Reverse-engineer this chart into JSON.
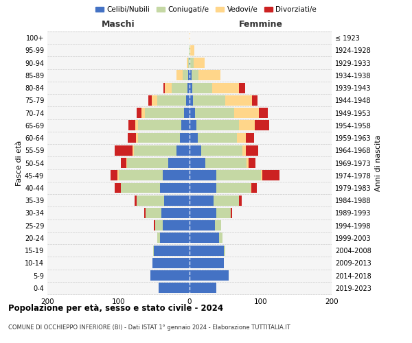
{
  "age_groups": [
    "0-4",
    "5-9",
    "10-14",
    "15-19",
    "20-24",
    "25-29",
    "30-34",
    "35-39",
    "40-44",
    "45-49",
    "50-54",
    "55-59",
    "60-64",
    "65-69",
    "70-74",
    "75-79",
    "80-84",
    "85-89",
    "90-94",
    "95-99",
    "100+"
  ],
  "birth_years": [
    "2019-2023",
    "2014-2018",
    "2009-2013",
    "2004-2008",
    "1999-2003",
    "1994-1998",
    "1989-1993",
    "1984-1988",
    "1979-1983",
    "1974-1978",
    "1969-1973",
    "1964-1968",
    "1959-1963",
    "1954-1958",
    "1949-1953",
    "1944-1948",
    "1939-1943",
    "1934-1938",
    "1929-1933",
    "1924-1928",
    "≤ 1923"
  ],
  "male": {
    "celibi": [
      43,
      55,
      52,
      50,
      42,
      38,
      40,
      36,
      42,
      38,
      30,
      18,
      14,
      12,
      8,
      5,
      3,
      2,
      0,
      0,
      0
    ],
    "coniugati": [
      0,
      0,
      0,
      1,
      3,
      10,
      22,
      38,
      55,
      62,
      58,
      60,
      58,
      60,
      55,
      40,
      22,
      8,
      2,
      1,
      0
    ],
    "vedovi": [
      0,
      0,
      0,
      0,
      0,
      0,
      0,
      0,
      0,
      1,
      1,
      2,
      3,
      4,
      5,
      8,
      10,
      8,
      2,
      0,
      0
    ],
    "divorziati": [
      0,
      0,
      0,
      0,
      0,
      2,
      2,
      3,
      8,
      10,
      8,
      25,
      12,
      10,
      6,
      5,
      2,
      0,
      0,
      0,
      0
    ]
  },
  "female": {
    "nubili": [
      38,
      55,
      48,
      48,
      42,
      36,
      38,
      34,
      38,
      38,
      22,
      16,
      12,
      10,
      8,
      5,
      4,
      3,
      1,
      0,
      0
    ],
    "coniugate": [
      0,
      0,
      0,
      2,
      4,
      8,
      20,
      36,
      48,
      62,
      58,
      58,
      55,
      60,
      55,
      45,
      28,
      10,
      5,
      1,
      0
    ],
    "vedove": [
      0,
      0,
      0,
      0,
      0,
      0,
      0,
      0,
      1,
      2,
      3,
      5,
      12,
      22,
      35,
      38,
      38,
      30,
      15,
      6,
      1
    ],
    "divorziate": [
      0,
      0,
      0,
      0,
      0,
      0,
      2,
      3,
      8,
      25,
      10,
      18,
      12,
      20,
      12,
      8,
      8,
      0,
      0,
      0,
      0
    ]
  },
  "colors": {
    "celibi": "#4472C4",
    "coniugati": "#C5D8A4",
    "vedovi": "#FFD68A",
    "divorziati": "#CC2222"
  },
  "xlim": 200,
  "title": "Popolazione per età, sesso e stato civile - 2024",
  "subtitle": "COMUNE DI OCCHIEPPO INFERIORE (BI) - Dati ISTAT 1° gennaio 2024 - Elaborazione TUTTITALIA.IT",
  "ylabel": "Fasce di età",
  "ylabel_right": "Anni di nascita",
  "legend_labels": [
    "Celibi/Nubili",
    "Coniugati/e",
    "Vedovi/e",
    "Divorziati/e"
  ]
}
